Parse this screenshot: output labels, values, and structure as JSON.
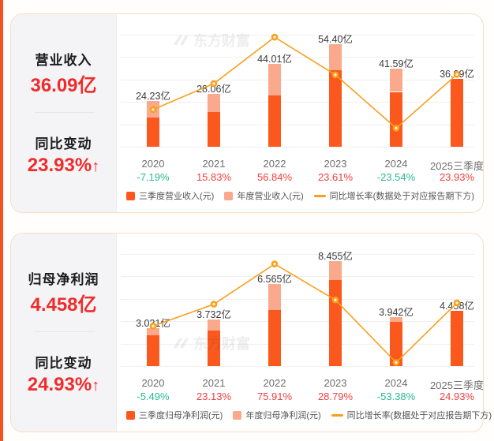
{
  "palette": {
    "bar_dark": "#fa581c",
    "bar_light": "#faa98c",
    "line": "#f8a01d",
    "marker_fill": "#fff6d8",
    "value_red": "#f12b2b",
    "pct_red": "#f23e3e",
    "pct_green": "#2ab98f",
    "accent_stripe": "#f4511e"
  },
  "watermark": {
    "text": "东方财富"
  },
  "cards": [
    {
      "panel": {
        "title": "营业收入",
        "value": "36.09亿",
        "change_title": "同比变动",
        "change_value": "23.93%",
        "change_arrow": "↑"
      }
    },
    {
      "panel": {
        "title": "归母净利润",
        "value": "4.458亿",
        "change_title": "同比变动",
        "change_value": "24.93%",
        "change_arrow": "↑"
      }
    }
  ],
  "chart_data": [
    {
      "type": "bar",
      "combo": "stacked-bar+line",
      "title": "营业收入",
      "categories": [
        "2020",
        "2021",
        "2022",
        "2023",
        "2024",
        "2025三季度"
      ],
      "series": [
        {
          "name": "三季度营业收入(元)",
          "role": "bar-q3",
          "unit": "亿",
          "values": [
            15.5,
            18.4,
            27.2,
            40.6,
            29.1,
            36.09
          ],
          "note": "2020-2024 values estimated from bar heights; not labeled on chart"
        },
        {
          "name": "年度营业收入(元)",
          "role": "bar-annual-total",
          "unit": "亿",
          "values": [
            24.23,
            28.06,
            44.01,
            54.4,
            41.59,
            null
          ]
        },
        {
          "name": "同比增长率(数据处于对应报告期下方)",
          "role": "line",
          "unit": "%",
          "values": [
            -7.19,
            15.83,
            56.84,
            23.61,
            -23.54,
            23.93
          ]
        }
      ],
      "bar_labels": [
        "24.23亿",
        "28.06亿",
        "44.01亿",
        "54.40亿",
        "41.59亿",
        "36.09亿"
      ],
      "pct_labels": [
        "-7.19%",
        "15.83%",
        "56.84%",
        "23.61%",
        "-23.54%",
        "23.93%"
      ],
      "bar_axis": {
        "min": 0,
        "max": 59.5
      },
      "line_axis": {
        "min": -40,
        "max": 59
      },
      "grid": "horizontal, light, no tick labels",
      "legend_position": "bottom"
    },
    {
      "type": "bar",
      "combo": "stacked-bar+line",
      "title": "归母净利润",
      "categories": [
        "2020",
        "2021",
        "2022",
        "2023",
        "2024",
        "2025三季度"
      ],
      "series": [
        {
          "name": "三季度归母净利润(元)",
          "role": "bar-q3",
          "unit": "亿",
          "values": [
            2.45,
            2.85,
            4.49,
            6.89,
            3.57,
            4.458
          ],
          "note": "2020-2024 values estimated from bar heights; not labeled on chart"
        },
        {
          "name": "年度归母净利润(元)",
          "role": "bar-annual-total",
          "unit": "亿",
          "values": [
            3.031,
            3.732,
            6.565,
            8.455,
            3.942,
            null
          ]
        },
        {
          "name": "同比增长率(数据处于对应报告期下方)",
          "role": "line",
          "unit": "%",
          "values": [
            -5.49,
            23.13,
            75.91,
            28.79,
            -53.38,
            24.93
          ]
        }
      ],
      "bar_labels": [
        "3.031亿",
        "3.732亿",
        "6.565亿",
        "8.455亿",
        "3.942亿",
        "4.458亿"
      ],
      "pct_labels": [
        "-5.49%",
        "23.13%",
        "75.91%",
        "28.79%",
        "-53.38%",
        "24.93%"
      ],
      "bar_axis": {
        "min": 0,
        "max": 9.0
      },
      "line_axis": {
        "min": -58,
        "max": 89
      },
      "grid": "horizontal, light, no tick labels",
      "legend_position": "bottom"
    }
  ]
}
